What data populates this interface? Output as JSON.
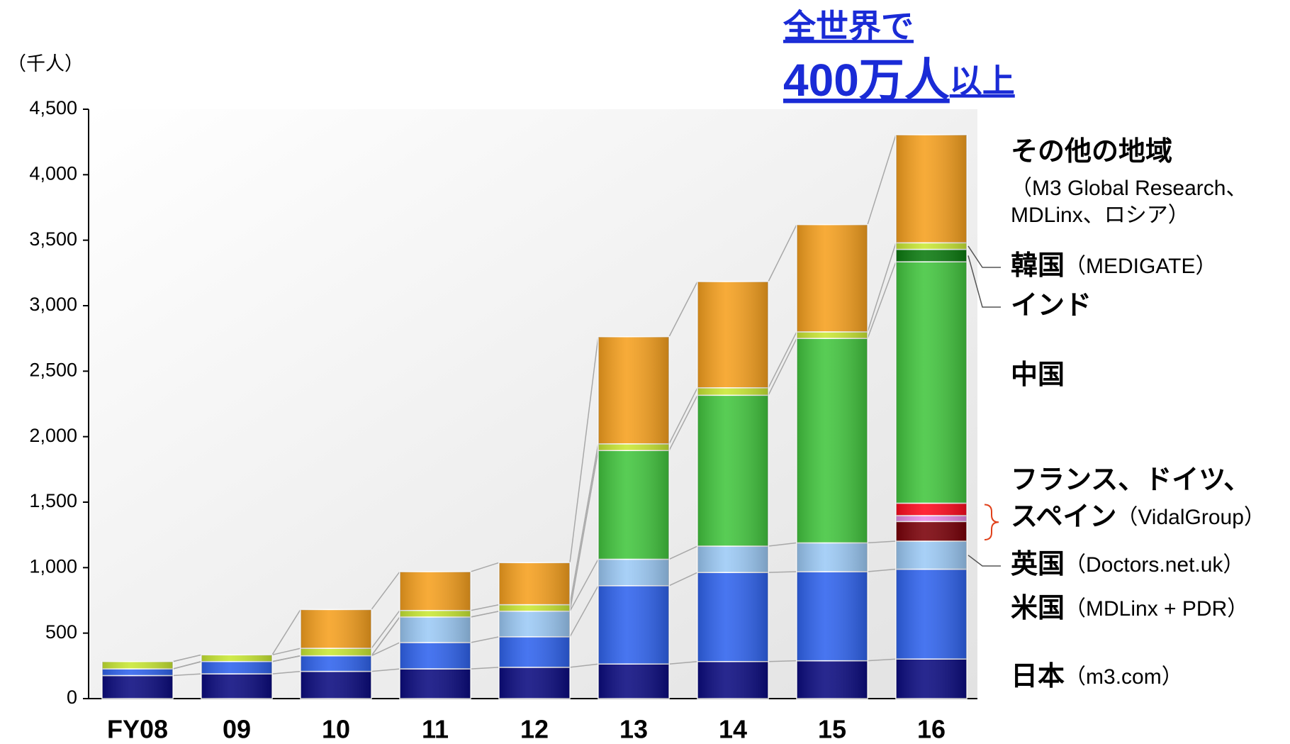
{
  "chart_data": {
    "type": "stacked-bar",
    "headline": {
      "line1": "全世界で",
      "line2": "400万人",
      "line2_small": "以上"
    },
    "y_unit": "（千人）",
    "categories": [
      "FY08",
      "09",
      "10",
      "11",
      "12",
      "13",
      "14",
      "15",
      "16"
    ],
    "series": [
      {
        "name": "日本",
        "note": "（m3.com）",
        "color": "#0b0b80",
        "values": [
          176,
          189,
          208,
          227,
          239,
          264,
          283,
          289,
          302
        ]
      },
      {
        "name": "米国",
        "note": "（MDLinx + PDR）",
        "color": "#2f63ee",
        "values": [
          51,
          94,
          119,
          201,
          233,
          598,
          680,
          680,
          686
        ]
      },
      {
        "name": "英国",
        "note": "（Doctors.net.uk）",
        "color": "#9ccaf6",
        "values": [
          0,
          0,
          0,
          195,
          195,
          202,
          201,
          220,
          214
        ]
      },
      {
        "name": null,
        "color": "#7a0008",
        "values": [
          0,
          0,
          0,
          0,
          0,
          0,
          0,
          0,
          150
        ]
      },
      {
        "name": null,
        "color": "#e88ce8",
        "values": [
          0,
          0,
          0,
          0,
          0,
          0,
          0,
          0,
          45
        ]
      },
      {
        "name": null,
        "color": "#ff0a1e",
        "values": [
          0,
          0,
          0,
          0,
          0,
          0,
          0,
          0,
          95
        ]
      },
      {
        "name": "中国",
        "color": "#42c63e",
        "values": [
          0,
          0,
          0,
          0,
          0,
          830,
          1152,
          1561,
          1843
        ]
      },
      {
        "name": "インド",
        "color": "#0a7a0e",
        "values": [
          0,
          0,
          0,
          0,
          0,
          0,
          0,
          0,
          95
        ]
      },
      {
        "name": "韓国",
        "note": "（MEDIGATE）",
        "color": "#c9e834",
        "values": [
          56,
          51,
          57,
          50,
          50,
          51,
          57,
          50,
          50
        ]
      },
      {
        "name": "その他の地域",
        "note_lines": [
          "（M3 Global Research、",
          "MDLinx、ロシア）"
        ],
        "color": "#f6a01e",
        "values": [
          0,
          0,
          296,
          296,
          321,
          818,
          811,
          819,
          825
        ]
      }
    ],
    "group_label": {
      "lines": [
        "フランス、ドイツ、",
        "スペイン"
      ],
      "note": "（VidalGroup）"
    },
    "ylim": [
      0,
      4500
    ],
    "yticks": [
      0,
      500,
      {
        "value": 1000,
        "label": "1,000"
      },
      {
        "value": 1500,
        "label": "1,500"
      },
      {
        "value": 2000,
        "label": "2,000"
      },
      {
        "value": 2500,
        "label": "2,500"
      },
      {
        "value": 3000,
        "label": "3,000"
      },
      {
        "value": 3500,
        "label": "3,500"
      },
      {
        "value": 4000,
        "label": "4,000"
      },
      {
        "value": 4500,
        "label": "4,500"
      }
    ]
  }
}
